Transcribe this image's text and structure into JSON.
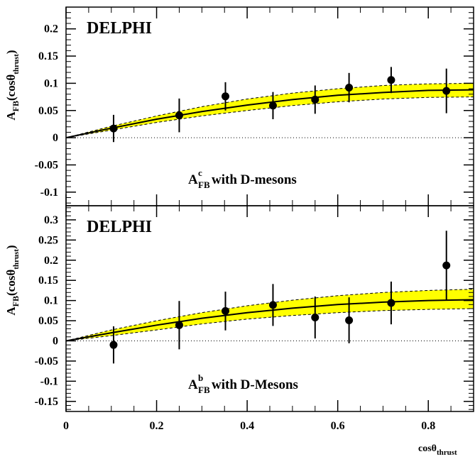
{
  "chart_data": [
    {
      "type": "scatter",
      "experiment_label": "DELPHI",
      "ylabel": {
        "main": "A",
        "sub": "FB",
        "paren": "(cosθ",
        "paren_sub": "thrust",
        "close": ")"
      },
      "annotation": {
        "main": "A",
        "sup": "c",
        "sub": "FB",
        "rest": " with D-mesons"
      },
      "xlim": [
        0,
        0.9
      ],
      "ylim": [
        -0.125,
        0.24
      ],
      "y_ticks": [
        0.2,
        0.15,
        0.1,
        0.05,
        0,
        -0.05,
        -0.1
      ],
      "y_tick_labels": [
        "0.2",
        "0.15",
        "0.1",
        "0.05",
        "0",
        "-0.05",
        "-0.1"
      ],
      "points": [
        {
          "x": 0.105,
          "y": 0.017,
          "err": 0.025
        },
        {
          "x": 0.25,
          "y": 0.041,
          "err": 0.031
        },
        {
          "x": 0.352,
          "y": 0.076,
          "err": 0.026
        },
        {
          "x": 0.457,
          "y": 0.059,
          "err": 0.025
        },
        {
          "x": 0.55,
          "y": 0.07,
          "err": 0.026
        },
        {
          "x": 0.625,
          "y": 0.092,
          "err": 0.027
        },
        {
          "x": 0.718,
          "y": 0.106,
          "err": 0.024
        },
        {
          "x": 0.84,
          "y": 0.086,
          "err": 0.041
        }
      ],
      "fit": {
        "x": [
          0,
          0.1,
          0.2,
          0.3,
          0.4,
          0.5,
          0.6,
          0.7,
          0.8,
          0.9
        ],
        "y": [
          0,
          0.0175,
          0.034,
          0.048,
          0.06,
          0.07,
          0.078,
          0.083,
          0.087,
          0.088
        ]
      },
      "band_upper": [
        0,
        0.021,
        0.04,
        0.057,
        0.071,
        0.082,
        0.09,
        0.096,
        0.099,
        0.1
      ],
      "band_lower": [
        0,
        0.014,
        0.028,
        0.04,
        0.05,
        0.059,
        0.066,
        0.071,
        0.074,
        0.075
      ],
      "zero_line": "dotted",
      "band_color": "#ffff00",
      "marker_color": "#000000"
    },
    {
      "type": "scatter",
      "experiment_label": "DELPHI",
      "ylabel": {
        "main": "A",
        "sub": "FB",
        "paren": "(cosθ",
        "paren_sub": "thrust",
        "close": ")"
      },
      "annotation": {
        "main": "A",
        "sup": "b",
        "sub": "FB",
        "rest": " with D-Mesons"
      },
      "xlabel": {
        "main": "cosθ",
        "sub": "thrust"
      },
      "xlim": [
        0,
        0.9
      ],
      "ylim": [
        -0.175,
        0.335
      ],
      "x_ticks": [
        0,
        0.2,
        0.4,
        0.6,
        0.8
      ],
      "x_tick_labels": [
        "0",
        "0.2",
        "0.4",
        "0.6",
        "0.8"
      ],
      "y_ticks": [
        0.3,
        0.25,
        0.2,
        0.15,
        0.1,
        0.05,
        0,
        -0.05,
        -0.1,
        -0.15
      ],
      "y_tick_labels": [
        "0.3",
        "0.25",
        "0.2",
        "0.15",
        "0.1",
        "0.05",
        "0",
        "-0.05",
        "-0.1",
        "-0.15"
      ],
      "points": [
        {
          "x": 0.105,
          "y": -0.01,
          "err": 0.046
        },
        {
          "x": 0.25,
          "y": 0.039,
          "err": 0.06
        },
        {
          "x": 0.352,
          "y": 0.074,
          "err": 0.048
        },
        {
          "x": 0.457,
          "y": 0.089,
          "err": 0.052
        },
        {
          "x": 0.55,
          "y": 0.058,
          "err": 0.052
        },
        {
          "x": 0.625,
          "y": 0.051,
          "err": 0.057
        },
        {
          "x": 0.718,
          "y": 0.094,
          "err": 0.053
        },
        {
          "x": 0.84,
          "y": 0.187,
          "err": 0.086
        }
      ],
      "fit": {
        "x": [
          0,
          0.1,
          0.2,
          0.3,
          0.4,
          0.5,
          0.6,
          0.7,
          0.8,
          0.9
        ],
        "y": [
          0,
          0.02,
          0.039,
          0.056,
          0.07,
          0.081,
          0.09,
          0.096,
          0.1,
          0.102
        ]
      },
      "band_upper": [
        0,
        0.027,
        0.05,
        0.07,
        0.087,
        0.101,
        0.112,
        0.12,
        0.125,
        0.128
      ],
      "band_lower": [
        0,
        0.013,
        0.027,
        0.042,
        0.054,
        0.063,
        0.07,
        0.075,
        0.078,
        0.08
      ],
      "zero_line": "dotted",
      "band_color": "#ffff00",
      "marker_color": "#000000"
    }
  ]
}
